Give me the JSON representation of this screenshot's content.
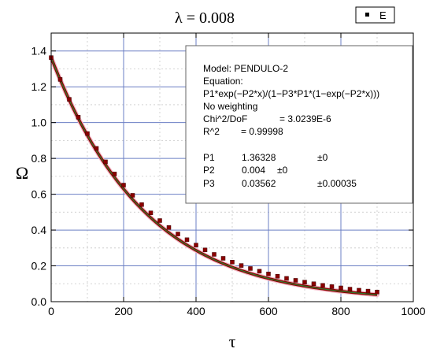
{
  "chart_data": {
    "type": "scatter",
    "title": "λ = 0.008",
    "xlabel": "τ",
    "ylabel": "Ω",
    "xlim": [
      0,
      1000
    ],
    "ylim": [
      0,
      1.5
    ],
    "x_ticks": [
      "0",
      "200",
      "400",
      "600",
      "800",
      "1000"
    ],
    "y_ticks": [
      "0.0",
      "0.2",
      "0.4",
      "0.6",
      "0.8",
      "1.0",
      "1.2",
      "1.4"
    ],
    "legend": {
      "placement": "top-right",
      "entries": [
        "E"
      ]
    },
    "grid": true,
    "fit_params": {
      "P1": 1.36328,
      "P2": 0.004,
      "P3": 0.03562
    },
    "series": [
      {
        "name": "E",
        "x": [
          0,
          25,
          50,
          75,
          100,
          125,
          150,
          175,
          200,
          225,
          250,
          275,
          300,
          325,
          350,
          375,
          400,
          425,
          450,
          475,
          500,
          525,
          550,
          575,
          600,
          625,
          650,
          675,
          700,
          725,
          750,
          775,
          800,
          825,
          850,
          875,
          900
        ],
        "y": [
          1.363,
          1.241,
          1.13,
          1.03,
          0.939,
          0.856,
          0.781,
          0.713,
          0.651,
          0.594,
          0.542,
          0.496,
          0.453,
          0.414,
          0.378,
          0.346,
          0.316,
          0.289,
          0.264,
          0.242,
          0.221,
          0.202,
          0.185,
          0.17,
          0.155,
          0.142,
          0.13,
          0.119,
          0.109,
          0.1,
          0.091,
          0.084,
          0.077,
          0.07,
          0.064,
          0.059,
          0.054
        ]
      }
    ],
    "color_marker": "#8b0000",
    "color_fit": "#2e7d2e",
    "color_grid_major": "#6b7fc4",
    "color_grid_minor": "#c8c8c8"
  },
  "fit_box": {
    "model": "Model: PENDULO-2",
    "equation_label": "Equation:",
    "equation": "P1*exp(−P2*x)/(1−P3*P1*(1−exp(−P2*x)))",
    "weighting": "No weighting",
    "chi_label": "Chi^2/DoF",
    "chi_value": "= 3.0239E-6",
    "r2_label": "R^2",
    "r2_value": "=  0.99998",
    "params": [
      {
        "name": "P1",
        "value": "1.36328",
        "error": "±0"
      },
      {
        "name": "P2",
        "value": "0.004",
        "error": "±0"
      },
      {
        "name": "P3",
        "value": "0.03562",
        "error": "±0.00035"
      }
    ]
  }
}
